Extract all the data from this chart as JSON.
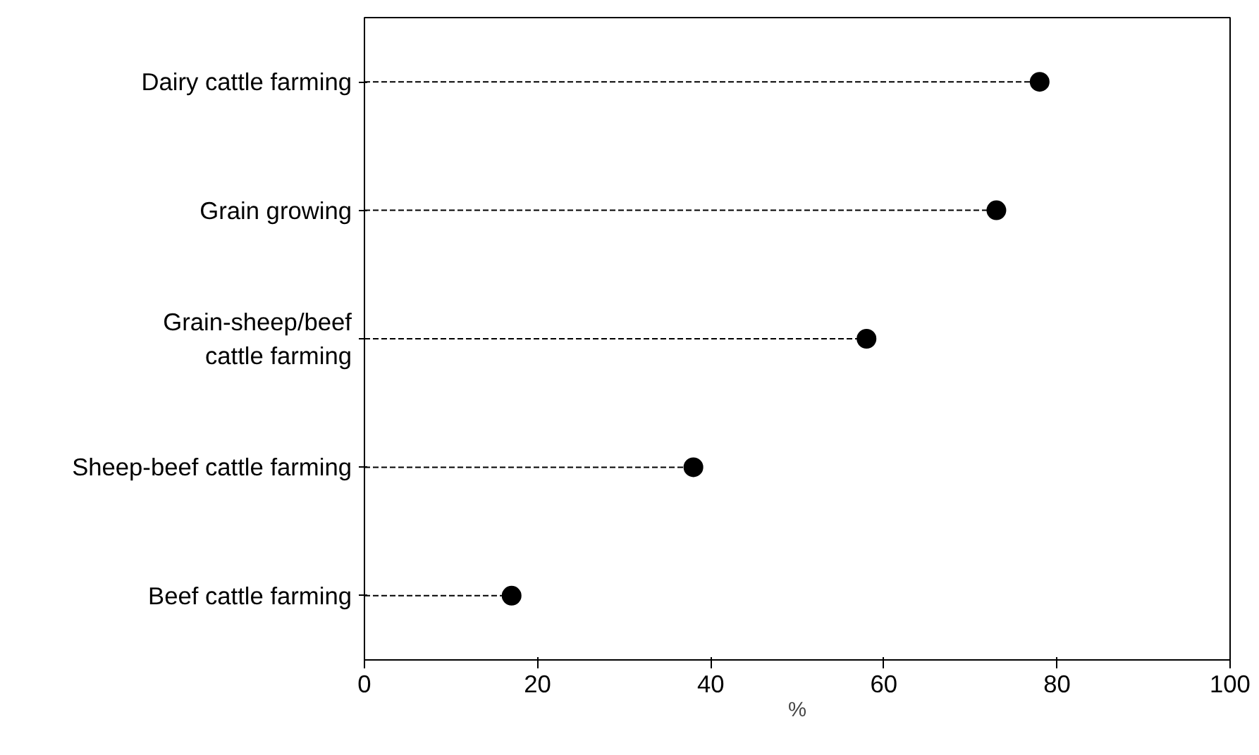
{
  "chart_data": {
    "type": "lollipop",
    "orientation": "horizontal",
    "xlabel": "%",
    "categories": [
      "Dairy cattle farming",
      "Grain growing",
      "Grain-sheep/beef\ncattle farming",
      "Sheep-beef cattle farming",
      "Beef cattle farming"
    ],
    "values": [
      78,
      73,
      58,
      38,
      17
    ],
    "color": "#000000",
    "marker": "circle",
    "line_style": "dashed",
    "xlim": [
      0,
      100
    ],
    "xticks": [
      0,
      20,
      40,
      60,
      80,
      100
    ],
    "grid": false
  }
}
